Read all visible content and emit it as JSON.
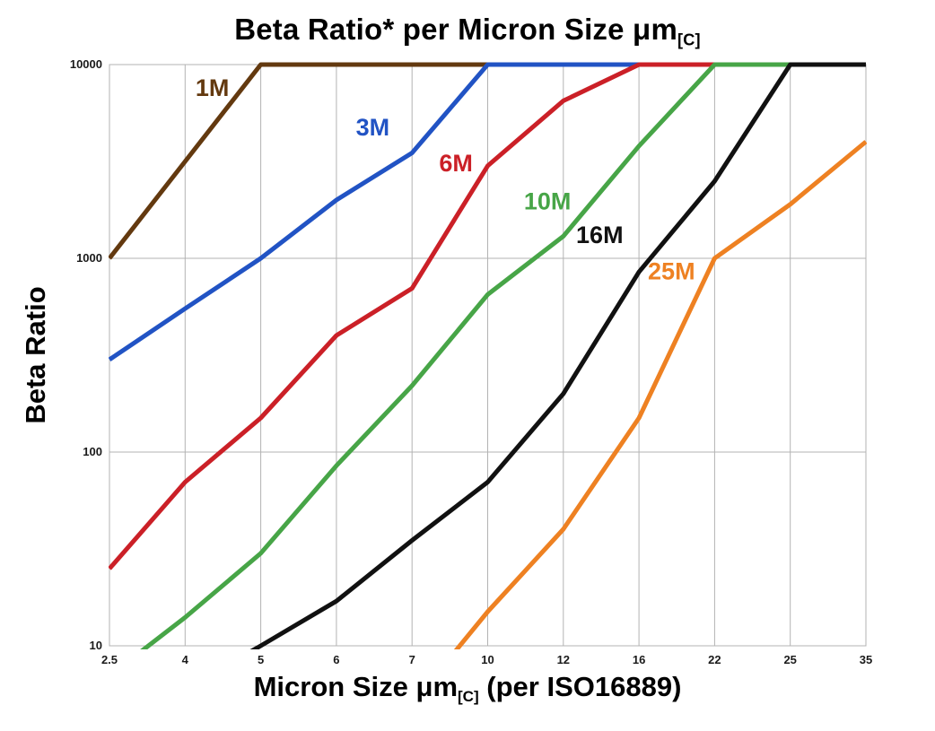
{
  "title": {
    "main": "Beta Ratio* per Micron Size μm",
    "sub": "[C]"
  },
  "y_axis": {
    "label": "Beta Ratio"
  },
  "x_axis": {
    "label_pre": "Micron Size μm",
    "label_sub": "[C]",
    "label_post": " (per ISO16889)"
  },
  "colors": {
    "grid": "#b3b3b3",
    "axis_text": "#1a1a1a",
    "background": "#ffffff"
  },
  "chart_data": {
    "type": "line",
    "title": "Beta Ratio* per Micron Size μm[C]",
    "xlabel": "Micron Size μm[C] (per ISO16889)",
    "ylabel": "Beta Ratio",
    "x_type": "categorical",
    "categories": [
      "2.5",
      "4",
      "5",
      "6",
      "7",
      "10",
      "12",
      "16",
      "22",
      "25",
      "35"
    ],
    "y_scale": "log",
    "ylim": [
      10,
      10000
    ],
    "y_ticks": [
      10,
      100,
      1000,
      10000
    ],
    "grid": true,
    "legend_position": "inline-labels",
    "series": [
      {
        "name": "1M",
        "color": "#63390f",
        "values": [
          1000,
          3162,
          10000,
          10000,
          10000,
          10000,
          10000,
          10000,
          10000,
          10000,
          10000
        ],
        "label_fx": 0.136,
        "label_fy": 0.04
      },
      {
        "name": "3M",
        "color": "#2153c4",
        "values": [
          300,
          550,
          1000,
          2000,
          3500,
          10000,
          10000,
          10000,
          10000,
          10000,
          10000
        ],
        "label_fx": 0.348,
        "label_fy": 0.108
      },
      {
        "name": "6M",
        "color": "#cb2027",
        "values": [
          25,
          70,
          150,
          400,
          700,
          3000,
          6500,
          10000,
          10000,
          10000,
          10000
        ],
        "label_fx": 0.458,
        "label_fy": 0.17
      },
      {
        "name": "10M",
        "color": "#47a547",
        "values": [
          7,
          14,
          30,
          85,
          220,
          650,
          1300,
          3800,
          10000,
          10000,
          10000
        ],
        "label_fx": 0.579,
        "label_fy": 0.235
      },
      {
        "name": "16M",
        "color": "#111111",
        "values": [
          null,
          6,
          10,
          17,
          35,
          70,
          200,
          850,
          2500,
          10000,
          10000
        ],
        "label_fx": 0.648,
        "label_fy": 0.293
      },
      {
        "name": "25M",
        "color": "#ee8122",
        "values": [
          null,
          null,
          null,
          null,
          5,
          15,
          40,
          150,
          1000,
          1900,
          4000
        ],
        "label_fx": 0.743,
        "label_fy": 0.356
      }
    ]
  }
}
